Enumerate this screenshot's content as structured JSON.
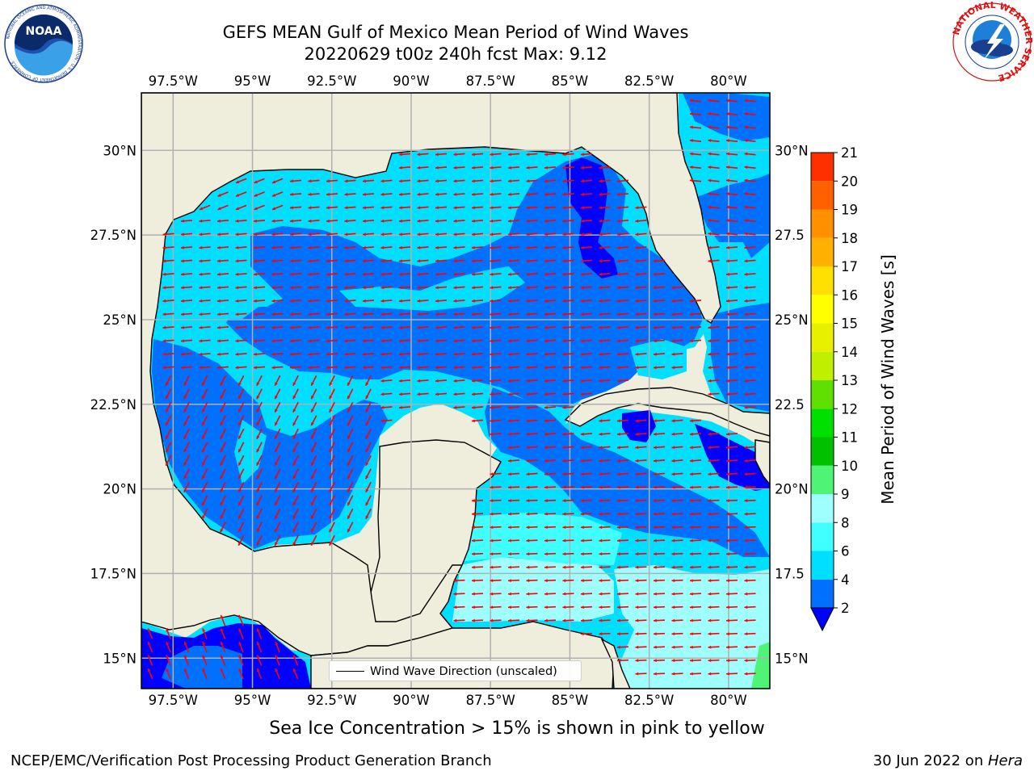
{
  "title": {
    "line1": "GEFS MEAN Gulf of Mexico Mean Period of Wind Waves",
    "line2": "20220629 t00z 240h fcst   Max: 9.12"
  },
  "map": {
    "region": "Gulf of Mexico",
    "lon_range": [
      -98.5,
      -78.7
    ],
    "lat_range": [
      14.1,
      31.7
    ],
    "lon_ticks": [
      "97.5°W",
      "95°W",
      "92.5°W",
      "90°W",
      "87.5°W",
      "85°W",
      "82.5°W",
      "80°W"
    ],
    "lat_ticks_left": [
      "30°N",
      "27.5°N",
      "25°N",
      "22.5°N",
      "20°N",
      "17.5°N",
      "15°N"
    ],
    "lat_ticks_right": [
      "30°N",
      "27.5",
      "25°N",
      "22.5",
      "20°N",
      "17.5",
      "15°N"
    ],
    "land_color": "#efeddc",
    "grid": true,
    "arrow_color": "#ff0000"
  },
  "colorbar": {
    "label": "Mean Period of Wind Waves [s]",
    "ticks": [
      "2",
      "4",
      "6",
      "8",
      "9",
      "10",
      "11",
      "12",
      "13",
      "14",
      "15",
      "16",
      "17",
      "18",
      "19",
      "20",
      "21"
    ],
    "colors": [
      "#0070ff",
      "#00dfff",
      "#3fffff",
      "#9fffff",
      "#4ff477",
      "#00c000",
      "#00e000",
      "#60e000",
      "#c0f000",
      "#e8f000",
      "#ffff00",
      "#ffe000",
      "#ffb000",
      "#ff9000",
      "#ff6000",
      "#ff3000",
      "#ff0000"
    ],
    "under_color": "#0000ff"
  },
  "legend": {
    "label": "Wind Wave Direction (unscaled)"
  },
  "subcaption": "Sea Ice Concentration > 15% is shown in pink to yellow",
  "footer": {
    "left": "NCEP/EMC/Verification Post Processing Product Generation Branch",
    "right_date": "30 Jun 2022 on ",
    "right_machine": "Hera"
  },
  "logos": {
    "left": "NOAA",
    "left_ring": "NATIONAL OCEANIC AND ATMOSPHERIC ADMINISTRATION · U.S. DEPARTMENT OF COMMERCE",
    "right_ring": "NATIONAL WEATHER SERVICE"
  }
}
